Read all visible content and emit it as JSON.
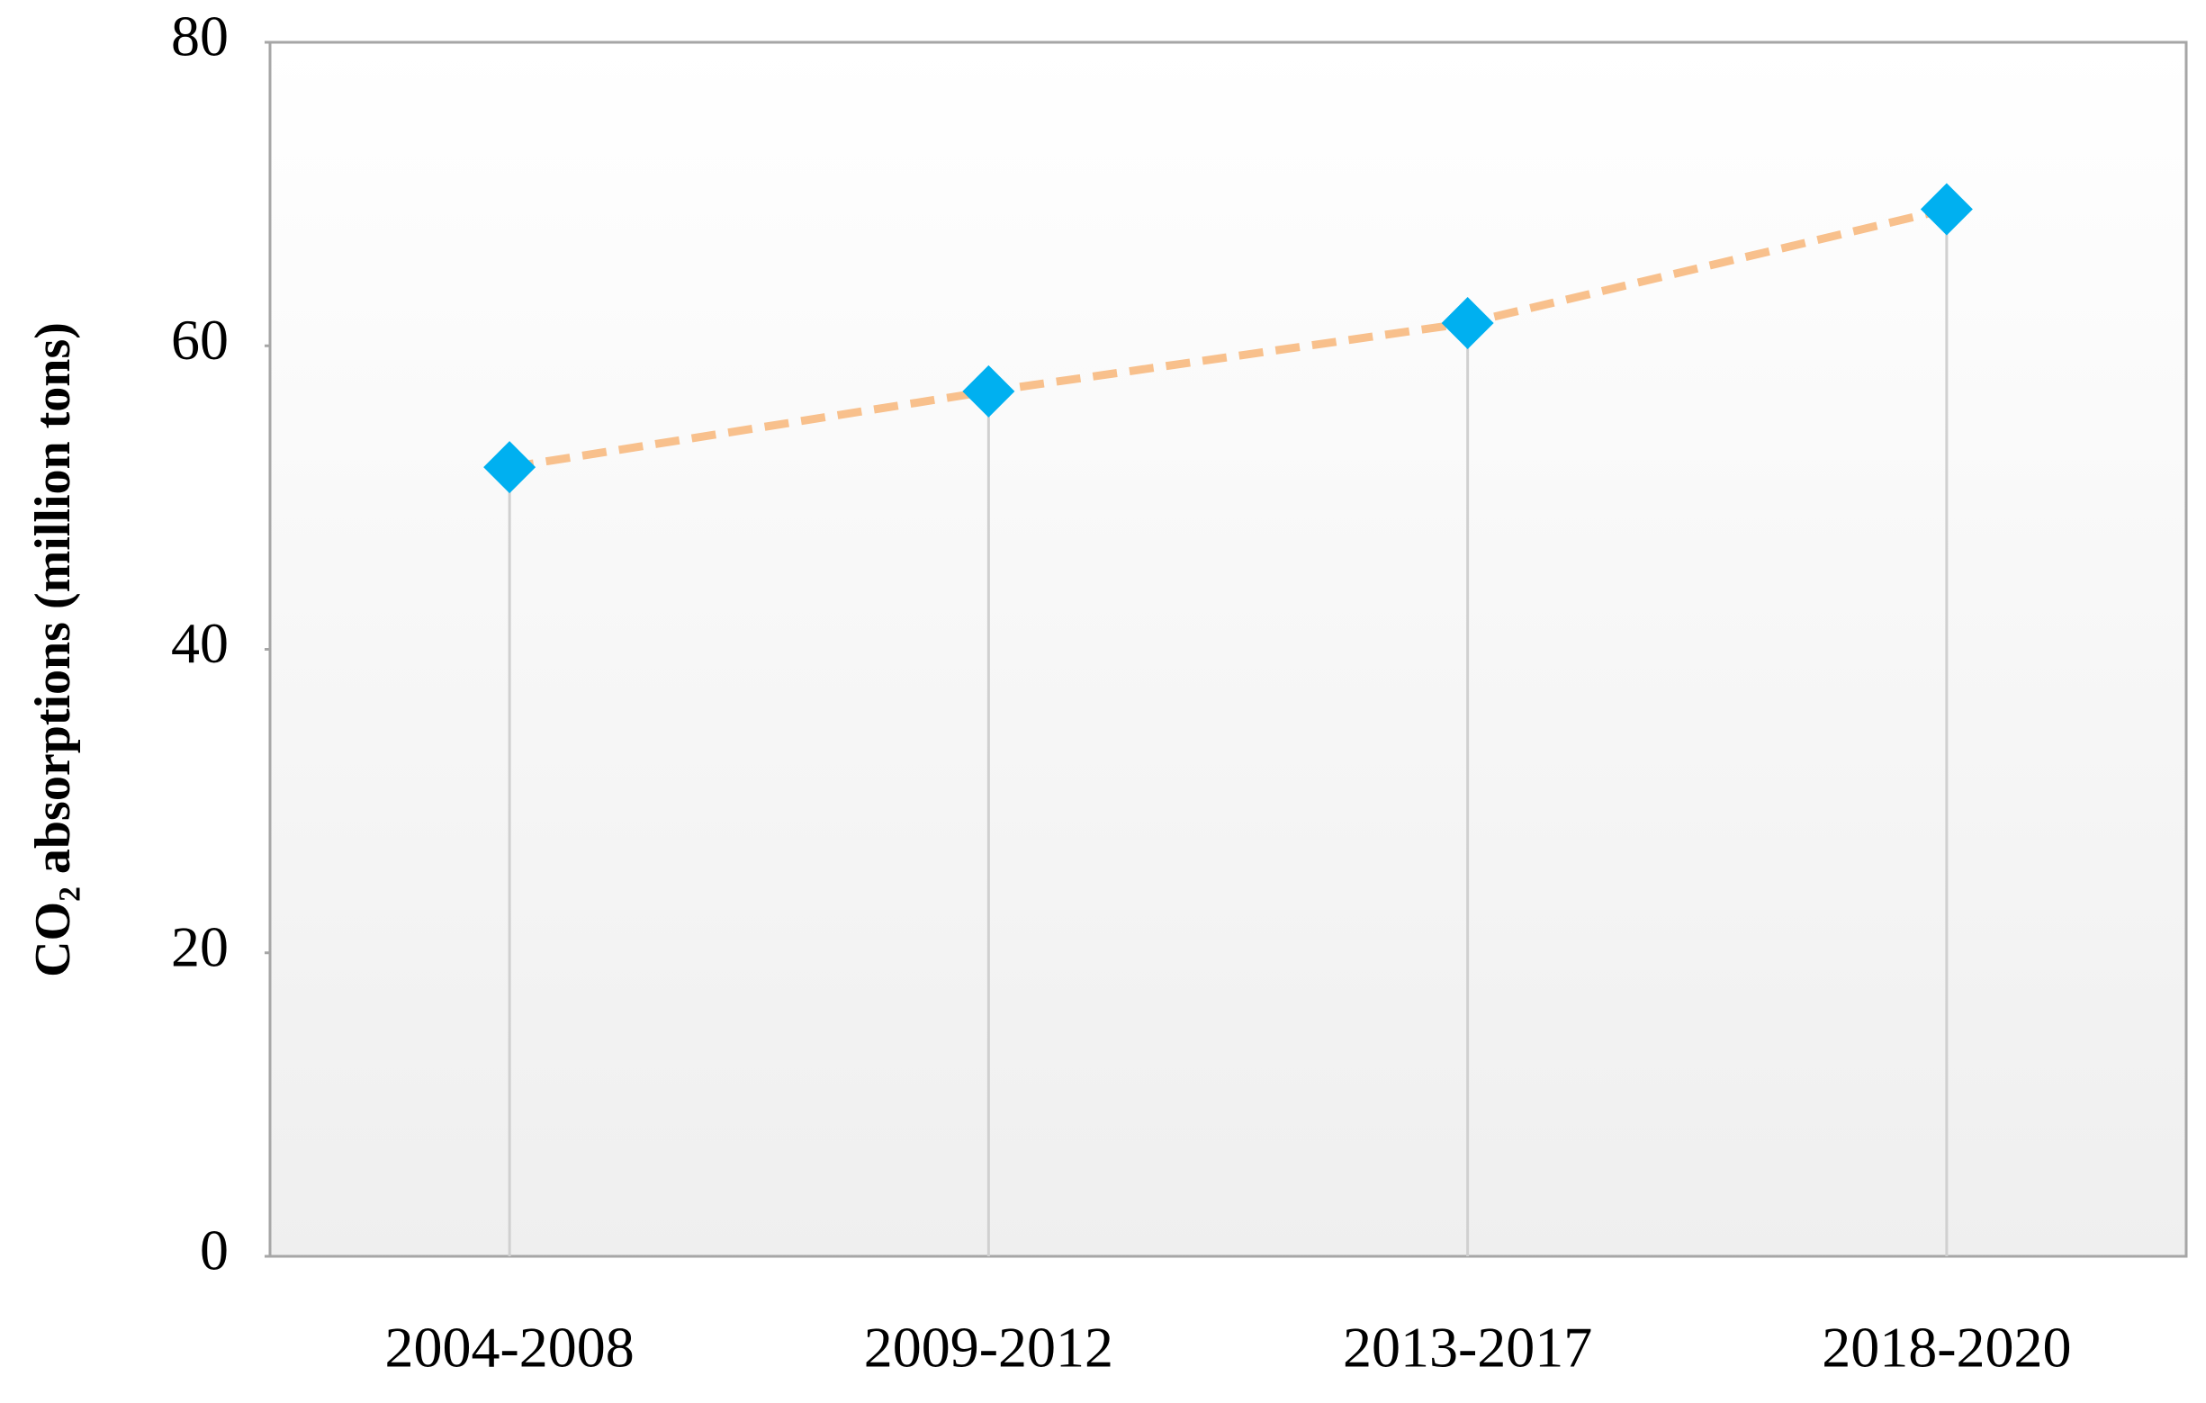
{
  "chart_data": {
    "type": "line",
    "y_label": "CO₂ absorptions (million tons)",
    "categories": [
      "2004-2008",
      "2009-2012",
      "2013-2017",
      "2018-2020"
    ],
    "values": [
      52,
      57,
      61.5,
      69
    ],
    "color": "#00b0f0",
    "line_color": "#f8c08c",
    "line_dashed": true,
    "marker": "diamond",
    "drop_lines": true,
    "ylim": [
      0,
      80
    ],
    "yticks": [
      0,
      20,
      40,
      60,
      80
    ]
  }
}
